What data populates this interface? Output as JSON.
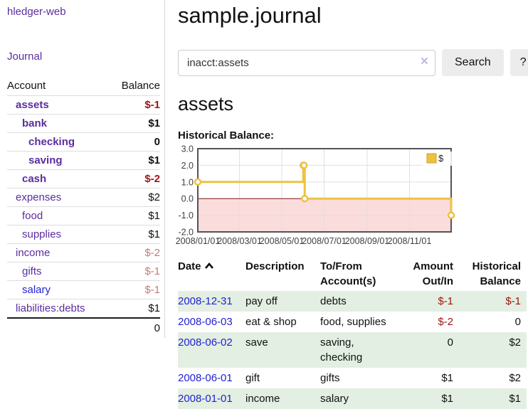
{
  "app": {
    "brand": "hledger-web"
  },
  "sidebar": {
    "journal_link": "Journal",
    "columns": {
      "account": "Account",
      "balance": "Balance"
    },
    "accounts": [
      {
        "name": "assets",
        "balance": "$-1",
        "depth": 0,
        "bold": true,
        "tone": "negative",
        "link": "purple"
      },
      {
        "name": "bank",
        "balance": "$1",
        "depth": 1,
        "bold": true,
        "tone": "normal",
        "link": "purple"
      },
      {
        "name": "checking",
        "balance": "0",
        "depth": 2,
        "bold": true,
        "tone": "normal",
        "link": "purple"
      },
      {
        "name": "saving",
        "balance": "$1",
        "depth": 2,
        "bold": true,
        "tone": "normal",
        "link": "purple"
      },
      {
        "name": "cash",
        "balance": "$-2",
        "depth": 1,
        "bold": true,
        "tone": "negative",
        "link": "purple"
      },
      {
        "name": "expenses",
        "balance": "$2",
        "depth": 0,
        "bold": false,
        "tone": "normal",
        "link": "purple"
      },
      {
        "name": "food",
        "balance": "$1",
        "depth": 1,
        "bold": false,
        "tone": "normal",
        "link": "purple"
      },
      {
        "name": "supplies",
        "balance": "$1",
        "depth": 1,
        "bold": false,
        "tone": "normal",
        "link": "purple"
      },
      {
        "name": "income",
        "balance": "$-2",
        "depth": 0,
        "bold": false,
        "tone": "muted",
        "link": "purple"
      },
      {
        "name": "gifts",
        "balance": "$-1",
        "depth": 1,
        "bold": false,
        "tone": "muted",
        "link": "purple"
      },
      {
        "name": "salary",
        "balance": "$-1",
        "depth": 1,
        "bold": false,
        "tone": "muted",
        "link": "blue"
      },
      {
        "name": "liabilities:debts",
        "balance": "$1",
        "depth": 0,
        "bold": false,
        "tone": "normal",
        "link": "purple"
      }
    ],
    "total": "0"
  },
  "header": {
    "title": "sample.journal"
  },
  "search": {
    "value": "inacct:assets",
    "clear_label": "×",
    "button_label": "Search",
    "help_label": "?"
  },
  "main": {
    "account_heading": "assets",
    "chart_label": "Historical Balance:"
  },
  "register": {
    "columns": {
      "date": "Date",
      "description": "Description",
      "accounts": "To/From Account(s)",
      "amount": "Amount Out/In",
      "balance": "Historical Balance"
    },
    "rows": [
      {
        "date": "2008-12-31",
        "description": "pay off",
        "accounts": "debts",
        "amount": "$-1",
        "amount_tone": "negative",
        "balance": "$-1",
        "balance_tone": "negative"
      },
      {
        "date": "2008-06-03",
        "description": "eat & shop",
        "accounts": "food, supplies",
        "amount": "$-2",
        "amount_tone": "negative",
        "balance": "0",
        "balance_tone": "normal"
      },
      {
        "date": "2008-06-02",
        "description": "save",
        "accounts": "saving, checking",
        "amount": "0",
        "amount_tone": "normal",
        "balance": "$2",
        "balance_tone": "normal"
      },
      {
        "date": "2008-06-01",
        "description": "gift",
        "accounts": "gifts",
        "amount": "$1",
        "amount_tone": "normal",
        "balance": "$2",
        "balance_tone": "normal"
      },
      {
        "date": "2008-01-01",
        "description": "income",
        "accounts": "salary",
        "amount": "$1",
        "amount_tone": "normal",
        "balance": "$1",
        "balance_tone": "normal"
      }
    ]
  },
  "chart_data": {
    "type": "line",
    "step": true,
    "title": "Historical Balance:",
    "series": [
      {
        "name": "$",
        "points": [
          [
            "2008-01-01",
            1
          ],
          [
            "2008-06-01",
            2
          ],
          [
            "2008-06-02",
            2
          ],
          [
            "2008-06-03",
            0
          ],
          [
            "2008-12-31",
            -1
          ]
        ]
      }
    ],
    "x_range": [
      "2008-01-01",
      "2008-12-31"
    ],
    "x_ticks": [
      {
        "date": "2008-01-01",
        "label": "2008/01/01"
      },
      {
        "date": "2008-03-01",
        "label": "2008/03/01"
      },
      {
        "date": "2008-05-01",
        "label": "2008/05/01"
      },
      {
        "date": "2008-07-01",
        "label": "2008/07/01"
      },
      {
        "date": "2008-09-01",
        "label": "2008/09/01"
      },
      {
        "date": "2008-11-01",
        "label": "2008/11/01"
      }
    ],
    "y_ticks": [
      3.0,
      2.0,
      1.0,
      0.0,
      -1.0,
      -2.0
    ],
    "ylim": [
      -2,
      3
    ],
    "grid": true,
    "legend_position": "top-right",
    "colors": {
      "line": "#edc240",
      "marker_fill": "#ffffff",
      "negative_fill": "#fbdcdc",
      "zero_line": "#8b1515",
      "grid": "#e0e0e0",
      "border": "#545454",
      "tick_text": "#3f3f3f"
    }
  },
  "colors": {
    "accent_purple": "#5b2d9e",
    "link_blue": "#2323d1",
    "negative_red": "#a31515",
    "muted_red": "#c47a7a",
    "row_green": "#e2efe2",
    "button_gray": "#ececec"
  }
}
